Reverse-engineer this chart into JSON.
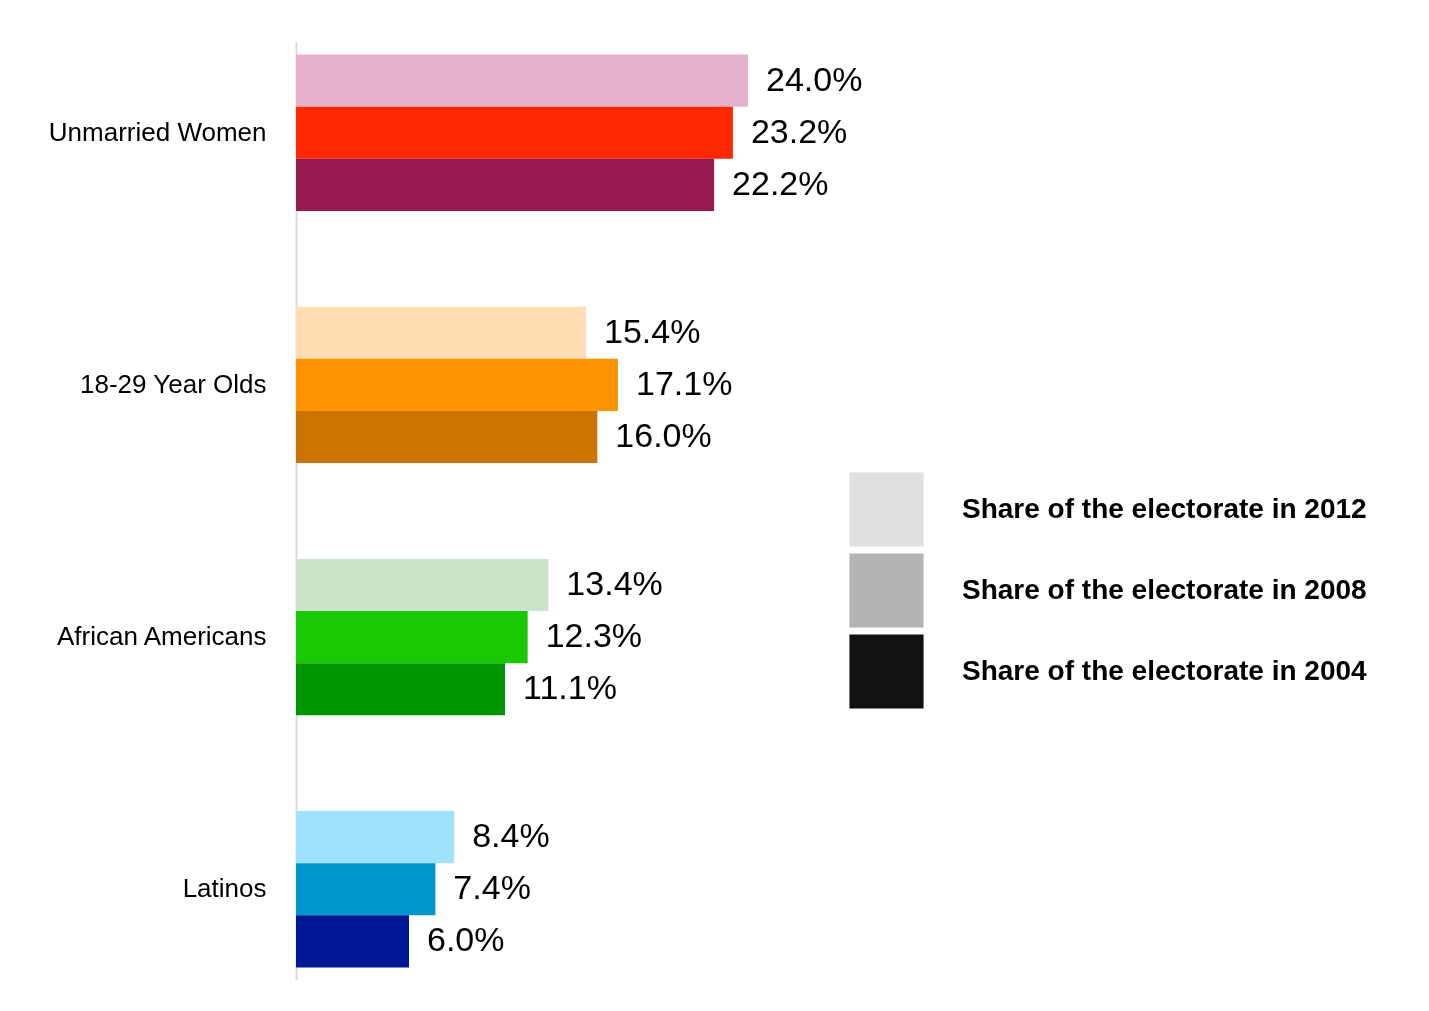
{
  "chart_data": {
    "type": "bar",
    "orientation": "horizontal",
    "categories": [
      "Unmarried Women",
      "18-29 Year Olds",
      "African Americans",
      "Latinos"
    ],
    "series": [
      {
        "name": "Share of the electorate in 2012",
        "color": "#e0e0e0",
        "colors": [
          "#e6b0cc",
          "#ffdcb4",
          "#cce4cc",
          "#a0e2fe"
        ],
        "values": [
          24.0,
          15.4,
          13.4,
          8.4
        ],
        "value_labels": [
          "24.0%",
          "15.4%",
          "13.4%",
          "8.4%"
        ]
      },
      {
        "name": "Share of the electorate in 2008",
        "color": "#b4b4b4",
        "colors": [
          "#ff2800",
          "#ff9400",
          "#19c800",
          "#0096cc"
        ],
        "values": [
          23.2,
          17.1,
          12.3,
          7.4
        ],
        "value_labels": [
          "23.2%",
          "17.1%",
          "12.3%",
          "7.4%"
        ]
      },
      {
        "name": "Share of the electorate in 2004",
        "color": "#111111",
        "colors": [
          "#96184e",
          "#cc7400",
          "#009400",
          "#001896"
        ],
        "values": [
          22.2,
          16.0,
          11.1,
          6.0
        ],
        "value_labels": [
          "22.2%",
          "16.0%",
          "11.1%",
          "6.0%"
        ]
      }
    ],
    "legend": "right"
  }
}
